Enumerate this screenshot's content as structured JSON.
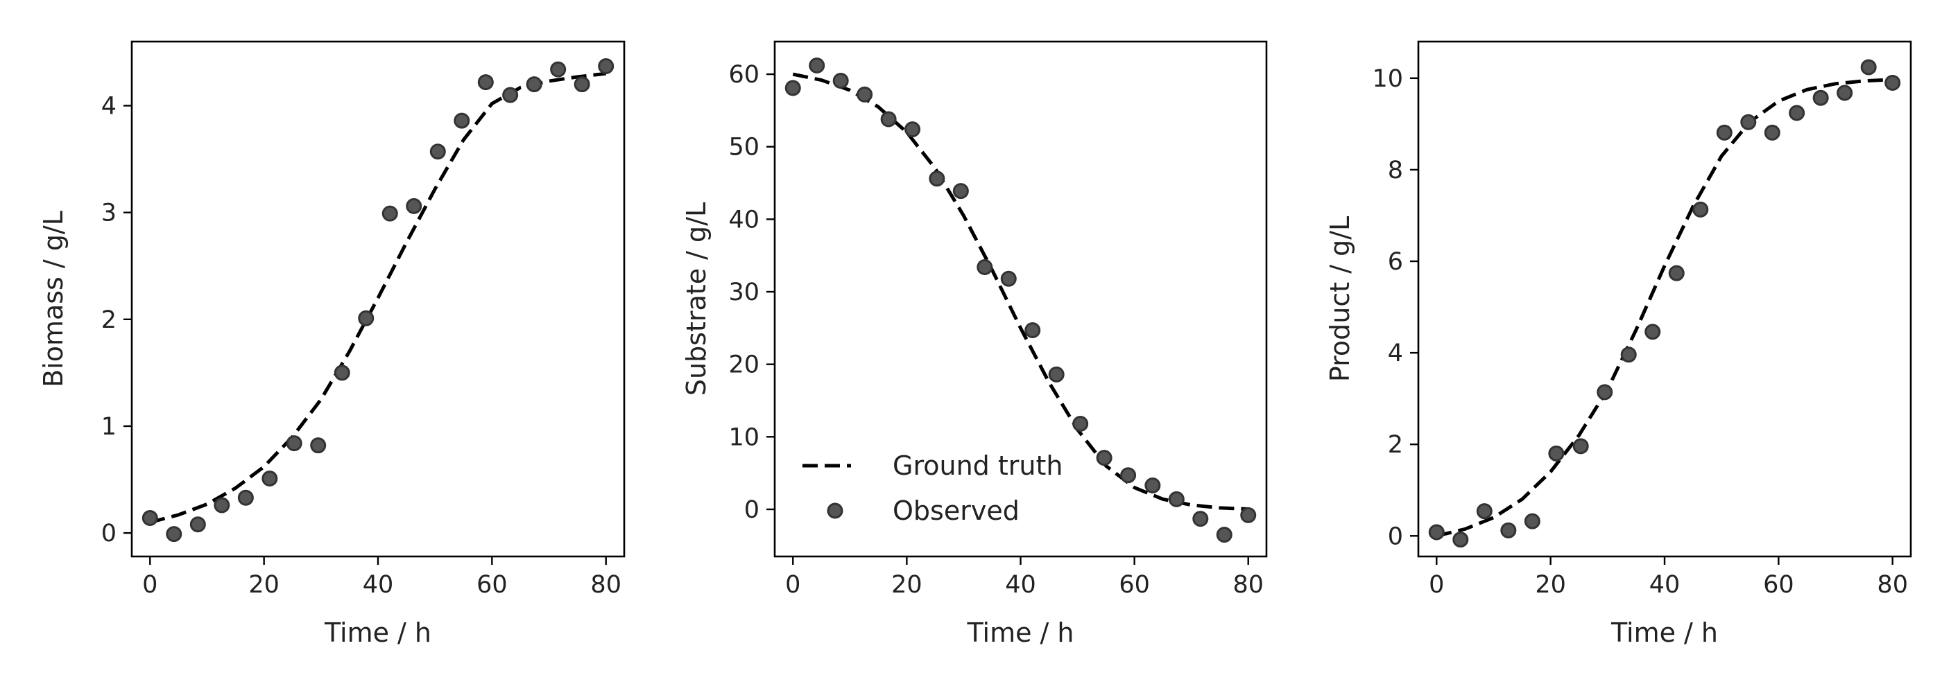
{
  "chart_data": [
    {
      "type": "line",
      "title": "",
      "xlabel": "Time / h",
      "ylabel": "Biomass / g/L",
      "xlim": [
        -3.2,
        83.2
      ],
      "ylim": [
        -0.22,
        4.6
      ],
      "xticks": [
        0,
        20,
        40,
        60,
        80
      ],
      "yticks": [
        0,
        1,
        2,
        3,
        4
      ],
      "grid": false,
      "legend": null,
      "series": [
        {
          "name": "Ground truth",
          "style": "dashed",
          "color": "#000000",
          "x": [
            0,
            5,
            10,
            15,
            20,
            25,
            30,
            35,
            40,
            45,
            50,
            55,
            60,
            65,
            70,
            75,
            80
          ],
          "y": [
            0.1,
            0.17,
            0.27,
            0.42,
            0.62,
            0.9,
            1.25,
            1.7,
            2.2,
            2.72,
            3.22,
            3.68,
            4.02,
            4.17,
            4.23,
            4.27,
            4.3
          ]
        },
        {
          "name": "Observed",
          "style": "markers",
          "color": "#555555",
          "x": [
            0,
            4.2,
            8.4,
            12.6,
            16.8,
            21,
            25.3,
            29.5,
            33.7,
            37.9,
            42.1,
            46.3,
            50.5,
            54.7,
            58.9,
            63.2,
            67.4,
            71.6,
            75.8,
            80
          ],
          "y": [
            0.14,
            -0.01,
            0.08,
            0.26,
            0.33,
            0.51,
            0.84,
            0.82,
            1.5,
            2.01,
            2.99,
            3.06,
            3.57,
            3.86,
            4.22,
            4.1,
            4.2,
            4.34,
            4.2,
            4.37
          ]
        }
      ]
    },
    {
      "type": "line",
      "title": "",
      "xlabel": "Time / h",
      "ylabel": "Substrate / g/L",
      "xlim": [
        -3.2,
        83.2
      ],
      "ylim": [
        -6.5,
        64.5
      ],
      "xticks": [
        0,
        20,
        40,
        60,
        80
      ],
      "yticks": [
        0,
        10,
        20,
        30,
        40,
        50,
        60
      ],
      "grid": false,
      "legend": "lower-left",
      "series": [
        {
          "name": "Ground truth",
          "style": "dashed",
          "color": "#000000",
          "x": [
            0,
            5,
            10,
            15,
            20,
            25,
            30,
            35,
            40,
            45,
            50,
            55,
            60,
            65,
            70,
            75,
            80
          ],
          "y": [
            60.0,
            59.2,
            57.8,
            55.5,
            52.0,
            47.0,
            40.5,
            33.0,
            25.0,
            17.5,
            11.0,
            6.0,
            3.0,
            1.4,
            0.6,
            0.2,
            0.05
          ]
        },
        {
          "name": "Observed",
          "style": "markers",
          "color": "#555555",
          "x": [
            0,
            4.2,
            8.4,
            12.6,
            16.8,
            21,
            25.3,
            29.5,
            33.7,
            37.9,
            42.1,
            46.3,
            50.5,
            54.7,
            58.9,
            63.2,
            67.4,
            71.6,
            75.8,
            80
          ],
          "y": [
            58.1,
            61.2,
            59.1,
            57.2,
            53.8,
            52.4,
            45.6,
            43.9,
            33.4,
            31.8,
            24.7,
            18.6,
            11.8,
            7.1,
            4.7,
            3.3,
            1.4,
            -1.3,
            -3.5,
            -0.8
          ]
        }
      ]
    },
    {
      "type": "line",
      "title": "",
      "xlabel": "Time / h",
      "ylabel": "Product / g/L",
      "xlim": [
        -3.2,
        83.2
      ],
      "ylim": [
        -0.45,
        10.8
      ],
      "xticks": [
        0,
        20,
        40,
        60,
        80
      ],
      "yticks": [
        0,
        2,
        4,
        6,
        8,
        10
      ],
      "grid": false,
      "legend": null,
      "series": [
        {
          "name": "Ground truth",
          "style": "dashed",
          "color": "#000000",
          "x": [
            0,
            5,
            10,
            15,
            20,
            25,
            30,
            35,
            40,
            45,
            50,
            55,
            60,
            65,
            70,
            75,
            80
          ],
          "y": [
            0.0,
            0.15,
            0.4,
            0.8,
            1.4,
            2.2,
            3.2,
            4.5,
            5.9,
            7.2,
            8.3,
            9.05,
            9.5,
            9.75,
            9.88,
            9.94,
            9.97
          ]
        },
        {
          "name": "Observed",
          "style": "markers",
          "color": "#555555",
          "x": [
            0,
            4.2,
            8.4,
            12.6,
            16.8,
            21,
            25.3,
            29.5,
            33.7,
            37.9,
            42.1,
            46.3,
            50.5,
            54.7,
            58.9,
            63.2,
            67.4,
            71.6,
            75.8,
            80
          ],
          "y": [
            0.08,
            -0.08,
            0.54,
            0.12,
            0.32,
            1.8,
            1.96,
            3.14,
            3.96,
            4.46,
            5.74,
            7.13,
            8.81,
            9.04,
            8.81,
            9.24,
            9.57,
            9.68,
            10.24,
            9.9
          ]
        }
      ]
    }
  ]
}
